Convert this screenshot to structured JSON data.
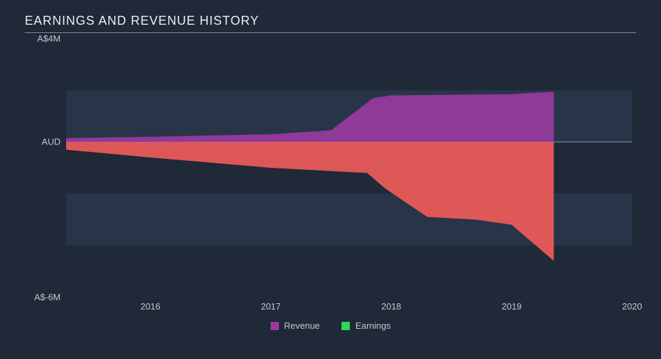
{
  "chart": {
    "type": "area",
    "title": "EARNINGS AND REVENUE HISTORY",
    "title_fontsize": 18,
    "title_color": "#eef1f5",
    "background_color": "#1f2937",
    "pane_band_alt_color": "#283548",
    "pane_band_base_color": "#1f2937",
    "rule_color": "#9aa4b4",
    "label_fontsize": 13,
    "label_color": "#c2c9d4",
    "x": {
      "min": 2015.3,
      "max": 2020.0,
      "ticks": [
        2016,
        2017,
        2018,
        2019,
        2020
      ],
      "tick_labels": [
        "2016",
        "2017",
        "2018",
        "2019",
        "2020"
      ]
    },
    "y": {
      "min": -6,
      "max": 4,
      "ticks": [
        4,
        0,
        -6
      ],
      "tick_labels": [
        "A$4M",
        "AUD",
        "A$-6M"
      ],
      "band_edges": [
        4,
        2,
        0,
        -2,
        -4,
        -6
      ]
    },
    "series": {
      "revenue": {
        "label": "Revenue",
        "color": "#9a3aa1",
        "fill_opacity": 0.9,
        "points": [
          [
            2015.3,
            0.15
          ],
          [
            2016.0,
            0.2
          ],
          [
            2017.0,
            0.3
          ],
          [
            2017.5,
            0.45
          ],
          [
            2017.85,
            1.7
          ],
          [
            2018.0,
            1.8
          ],
          [
            2019.0,
            1.85
          ],
          [
            2019.35,
            1.95
          ],
          [
            2019.35,
            0.0
          ]
        ]
      },
      "earnings": {
        "label": "Earnings",
        "color_swatch": "#2dd65f",
        "color_fill": "#ef5b5a",
        "fill_opacity": 0.92,
        "points": [
          [
            2015.3,
            -0.3
          ],
          [
            2016.0,
            -0.6
          ],
          [
            2017.0,
            -1.0
          ],
          [
            2017.8,
            -1.2
          ],
          [
            2017.95,
            -1.8
          ],
          [
            2018.3,
            -2.9
          ],
          [
            2018.7,
            -3.0
          ],
          [
            2019.0,
            -3.2
          ],
          [
            2019.35,
            -4.6
          ],
          [
            2019.35,
            0.0
          ]
        ]
      }
    },
    "legend_order": [
      "revenue",
      "earnings"
    ]
  }
}
